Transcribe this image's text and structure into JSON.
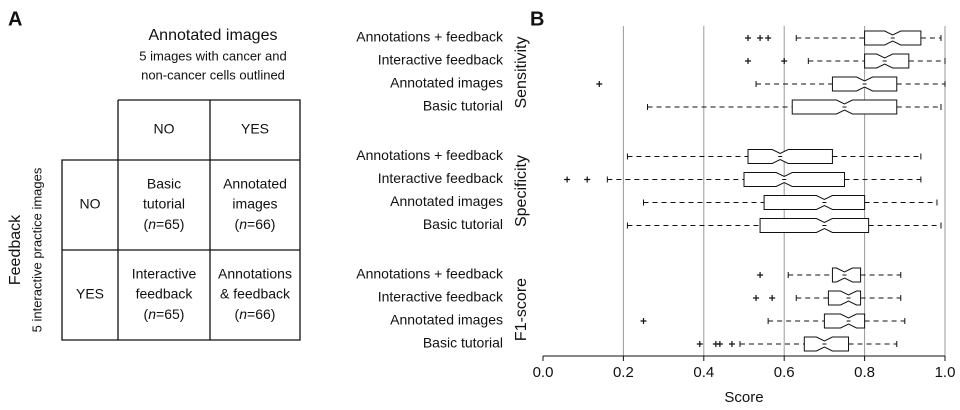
{
  "panel_a": {
    "label": "A",
    "col_title": "Annotated images",
    "col_subtitle": [
      "5 images with cancer and",
      "non-cancer cells outlined"
    ],
    "row_title": "Feedback",
    "row_subtitle": "5 interactive practice images",
    "col_headers": [
      "NO",
      "YES"
    ],
    "row_headers": [
      "NO",
      "YES"
    ],
    "cells": [
      [
        {
          "lines": [
            "Basic",
            "tutorial"
          ],
          "sample": [
            "(",
            "n",
            "=65)"
          ]
        },
        {
          "lines": [
            "Annotated",
            "images"
          ],
          "sample": [
            "(",
            "n",
            "=66)"
          ]
        }
      ],
      [
        {
          "lines": [
            "Interactive",
            "feedback"
          ],
          "sample": [
            "(",
            "n",
            "=65)"
          ]
        },
        {
          "lines": [
            "Annotations",
            "& feedback"
          ],
          "sample": [
            "(",
            "n",
            "=66)"
          ]
        }
      ]
    ]
  },
  "chart_data": {
    "type": "boxplot",
    "panel_label": "B",
    "xlabel": "Score",
    "xlim": [
      0,
      1
    ],
    "xticks": [
      {
        "value": 0,
        "label": "0.0"
      },
      0.2,
      0.4,
      0.6,
      0.8,
      {
        "value": 1,
        "label": "1.0"
      }
    ],
    "grid": true,
    "color": "#111111",
    "groups": [
      {
        "name": "Sensitivity",
        "categories": [
          "Annotations + feedback",
          "Interactive feedback",
          "Annotated images",
          "Basic tutorial"
        ],
        "boxes": [
          {
            "whislo": 0.63,
            "q1": 0.8,
            "med": 0.87,
            "q3": 0.94,
            "whishi": 0.99,
            "fliers": [
              0.51,
              0.54,
              0.56
            ]
          },
          {
            "whislo": 0.66,
            "q1": 0.8,
            "med": 0.85,
            "q3": 0.91,
            "whishi": 1,
            "fliers": [
              0.51,
              0.6
            ]
          },
          {
            "whislo": 0.53,
            "q1": 0.72,
            "med": 0.8,
            "q3": 0.88,
            "whishi": 1,
            "fliers": [
              0.14
            ]
          },
          {
            "whislo": 0.26,
            "q1": 0.62,
            "med": 0.75,
            "q3": 0.88,
            "whishi": 0.99,
            "fliers": []
          }
        ]
      },
      {
        "name": "Specificity",
        "categories": [
          "Annotations + feedback",
          "Interactive feedback",
          "Annotated images",
          "Basic tutorial"
        ],
        "boxes": [
          {
            "whislo": 0.21,
            "q1": 0.51,
            "med": 0.59,
            "q3": 0.72,
            "whishi": 0.94,
            "fliers": []
          },
          {
            "whislo": 0.16,
            "q1": 0.5,
            "med": 0.6,
            "q3": 0.75,
            "whishi": 0.94,
            "fliers": [
              0.06,
              0.11
            ]
          },
          {
            "whislo": 0.25,
            "q1": 0.55,
            "med": 0.7,
            "q3": 0.8,
            "whishi": 0.98,
            "fliers": []
          },
          {
            "whislo": 0.21,
            "q1": 0.54,
            "med": 0.7,
            "q3": 0.81,
            "whishi": 0.99,
            "fliers": []
          }
        ]
      },
      {
        "name": "F1-score",
        "categories": [
          "Annotations + feedback",
          "Interactive feedback",
          "Annotated images",
          "Basic tutorial"
        ],
        "boxes": [
          {
            "whislo": 0.61,
            "q1": 0.72,
            "med": 0.75,
            "q3": 0.79,
            "whishi": 0.89,
            "fliers": [
              0.54
            ]
          },
          {
            "whislo": 0.63,
            "q1": 0.71,
            "med": 0.76,
            "q3": 0.79,
            "whishi": 0.89,
            "fliers": [
              0.53,
              0.57
            ]
          },
          {
            "whislo": 0.56,
            "q1": 0.7,
            "med": 0.76,
            "q3": 0.8,
            "whishi": 0.9,
            "fliers": [
              0.25
            ]
          },
          {
            "whislo": 0.49,
            "q1": 0.65,
            "med": 0.7,
            "q3": 0.76,
            "whishi": 0.88,
            "fliers": [
              0.39,
              0.43,
              0.44,
              0.47
            ]
          }
        ]
      }
    ]
  }
}
